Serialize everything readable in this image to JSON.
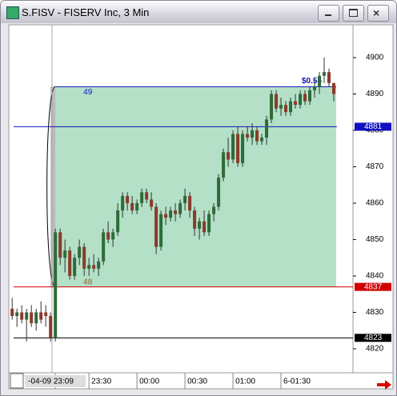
{
  "window": {
    "title": "S.FISV - FISERV Inc, 3 Min"
  },
  "chart_data": {
    "type": "candlestick",
    "up_color": "#2e6b3a",
    "down_color": "#8b3a2a",
    "open": [
      4831,
      4829,
      4830,
      4828,
      4830,
      4827,
      4830,
      4830,
      4829,
      4823,
      4852,
      4845,
      4847,
      4840,
      4845,
      4848,
      4842,
      4843,
      4842,
      4844,
      4852,
      4850,
      4852,
      4858,
      4862,
      4860,
      4858,
      4860,
      4863,
      4861,
      4859,
      4848,
      4857,
      4856,
      4858,
      4857,
      4860,
      4862,
      4858,
      4853,
      4855,
      4852,
      4857,
      4859,
      4867,
      4874,
      4872,
      4879,
      4871,
      4879,
      4878,
      4880,
      4877,
      4878,
      4883,
      4890,
      4886,
      4887,
      4885,
      4888,
      4887,
      4890,
      4888,
      4891,
      4892,
      4895,
      4896,
      4893
    ],
    "high": [
      4834,
      4831,
      4832,
      4831,
      4832,
      4831,
      4833,
      4832,
      4830,
      4853,
      4853,
      4850,
      4848,
      4846,
      4850,
      4849,
      4845,
      4846,
      4845,
      4853,
      4855,
      4853,
      4860,
      4863,
      4863,
      4862,
      4861,
      4864,
      4864,
      4863,
      4860,
      4858,
      4859,
      4859,
      4860,
      4861,
      4864,
      4863,
      4859,
      4856,
      4858,
      4858,
      4860,
      4868,
      4875,
      4878,
      4880,
      4881,
      4880,
      4881,
      4882,
      4881,
      4879,
      4884,
      4891,
      4891,
      4889,
      4888,
      4889,
      4890,
      4891,
      4891,
      4892,
      4894,
      4896,
      4900,
      4897,
      4893
    ],
    "low": [
      4828,
      4826,
      4827,
      4822,
      4826,
      4825,
      4827,
      4826,
      4822,
      4822,
      4843,
      4841,
      4839,
      4839,
      4843,
      4840,
      4840,
      4841,
      4840,
      4843,
      4849,
      4848,
      4851,
      4856,
      4858,
      4857,
      4857,
      4859,
      4860,
      4858,
      4846,
      4847,
      4854,
      4855,
      4855,
      4856,
      4858,
      4856,
      4851,
      4850,
      4851,
      4851,
      4855,
      4858,
      4866,
      4870,
      4871,
      4870,
      4870,
      4877,
      4876,
      4876,
      4876,
      4876,
      4882,
      4885,
      4884,
      4884,
      4884,
      4886,
      4886,
      4887,
      4887,
      4889,
      4890,
      4893,
      4892,
      4888
    ],
    "close": [
      4829,
      4830,
      4828,
      4830,
      4827,
      4830,
      4828,
      4829,
      4823,
      4852,
      4845,
      4847,
      4840,
      4845,
      4848,
      4842,
      4843,
      4842,
      4844,
      4852,
      4850,
      4852,
      4858,
      4862,
      4860,
      4858,
      4860,
      4863,
      4861,
      4859,
      4848,
      4857,
      4856,
      4858,
      4857,
      4860,
      4862,
      4858,
      4853,
      4855,
      4852,
      4857,
      4859,
      4867,
      4874,
      4872,
      4879,
      4871,
      4879,
      4878,
      4880,
      4877,
      4878,
      4883,
      4890,
      4886,
      4887,
      4885,
      4888,
      4887,
      4890,
      4888,
      4891,
      4892,
      4895,
      4896,
      4893,
      4890
    ],
    "xlim": [
      -0.7,
      71
    ],
    "xticks": [
      {
        "value": 9,
        "label": "-04-09 23:09"
      },
      {
        "value": 16,
        "label": "23:30"
      },
      {
        "value": 26,
        "label": "00:00"
      },
      {
        "value": 36,
        "label": "00:30"
      },
      {
        "value": 46,
        "label": "01:00"
      },
      {
        "value": 56,
        "label": "6-01:30"
      }
    ],
    "ylim": [
      4813.4,
      4909
    ],
    "yticks": [
      4820,
      4830,
      4840,
      4850,
      4860,
      4870,
      4880,
      4890,
      4900
    ],
    "levels": [
      {
        "value": 4881,
        "color": "#1010c0"
      },
      {
        "value": 4837,
        "color": "#d00000"
      },
      {
        "value": 4823,
        "color": "#000000"
      }
    ],
    "range_box": {
      "start": 9,
      "end": 67,
      "top": 4892,
      "bottom": 4837,
      "color": "#b3e0c6",
      "top_label": "49",
      "bottom_label": "48",
      "note": "$0.55"
    }
  }
}
